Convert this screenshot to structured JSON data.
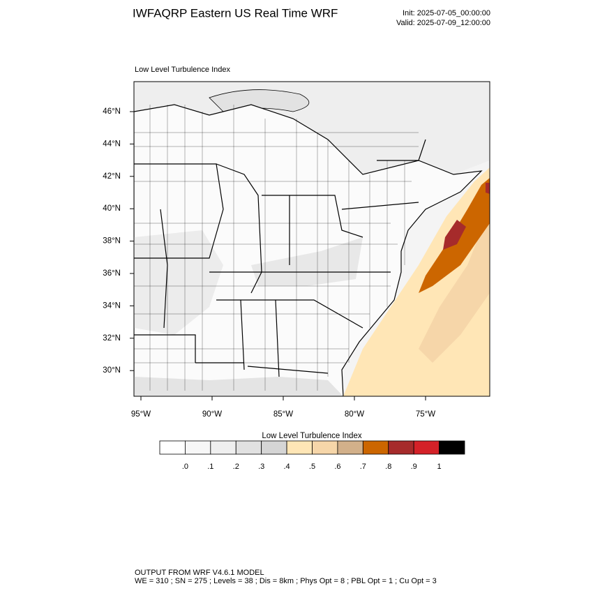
{
  "header": {
    "title": "IWFAQRP Eastern US Real Time WRF",
    "init": "Init: 2025-07-05_00:00:00",
    "valid": "Valid: 2025-07-09_12:00:00"
  },
  "map": {
    "title": "Low Level Turbulence Index",
    "lat_labels": [
      "46°N",
      "44°N",
      "42°N",
      "40°N",
      "38°N",
      "36°N",
      "34°N",
      "32°N",
      "30°N"
    ],
    "lon_labels": [
      "95°W",
      "90°W",
      "85°W",
      "80°W",
      "75°W"
    ]
  },
  "colorbar": {
    "title": "Low Level Turbulence Index",
    "colors": [
      "#ffffff",
      "#f7f7f7",
      "#efefef",
      "#e1e1e1",
      "#d5d5d5",
      "#ffe6b6",
      "#f6d6a9",
      "#d2b08a",
      "#cc6600",
      "#a62b2b",
      "#d42128",
      "#000000"
    ],
    "labels": [
      ".0",
      ".1",
      ".2",
      ".3",
      ".4",
      ".5",
      ".6",
      ".7",
      ".8",
      ".9",
      "1"
    ]
  },
  "footer": {
    "line1": "OUTPUT FROM WRF V4.6.1 MODEL",
    "line2": "WE = 310 ; SN = 275 ; Levels = 38 ; Dis = 8km ; Phys Opt = 8 ; PBL Opt = 1 ; Cu Opt = 3"
  }
}
